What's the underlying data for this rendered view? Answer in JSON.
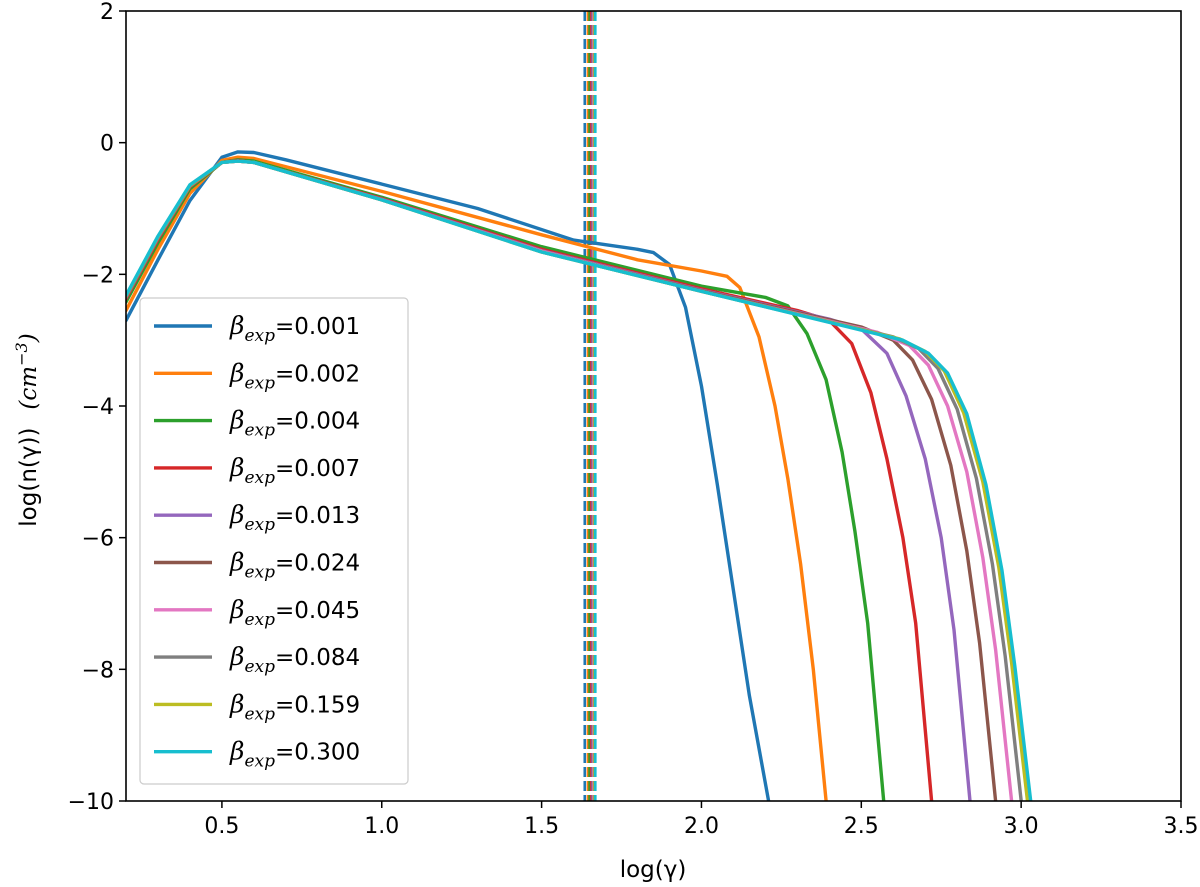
{
  "chart_data": {
    "type": "line",
    "xlabel": "log(γ)",
    "ylabel": "log(n(γ))",
    "ylabel_unit_base": "cm",
    "ylabel_unit_exp": "−3",
    "xlim": [
      0.2,
      3.5
    ],
    "ylim": [
      -10,
      2
    ],
    "xticks": [
      0.5,
      1.0,
      1.5,
      2.0,
      2.5,
      3.0,
      3.5
    ],
    "xtick_labels": [
      "0.5",
      "1.0",
      "1.5",
      "2.0",
      "2.5",
      "3.0",
      "3.5"
    ],
    "yticks": [
      -10,
      -8,
      -6,
      -4,
      -2,
      0,
      2
    ],
    "ytick_labels": [
      "−10",
      "−8",
      "−6",
      "−4",
      "−2",
      "0",
      "2"
    ],
    "legend_position": "lower-left",
    "legend_symbol": "β",
    "legend_subscript": "exp",
    "vlines": [
      {
        "x": 1.635,
        "color": "#1f77b4"
      },
      {
        "x": 1.645,
        "color": "#ff7f0e"
      },
      {
        "x": 1.65,
        "color": "#2ca02c"
      },
      {
        "x": 1.655,
        "color": "#d62728"
      },
      {
        "x": 1.658,
        "color": "#9467bd"
      },
      {
        "x": 1.66,
        "color": "#8c564b"
      },
      {
        "x": 1.662,
        "color": "#e377c2"
      },
      {
        "x": 1.664,
        "color": "#7f7f7f"
      },
      {
        "x": 1.666,
        "color": "#bcbd22"
      },
      {
        "x": 1.668,
        "color": "#17becf"
      }
    ],
    "series": [
      {
        "name": "=0.001",
        "color": "#1f77b4",
        "points": [
          [
            0.2,
            -2.7
          ],
          [
            0.3,
            -1.78
          ],
          [
            0.4,
            -0.88
          ],
          [
            0.5,
            -0.22
          ],
          [
            0.55,
            -0.14
          ],
          [
            0.6,
            -0.15
          ],
          [
            0.7,
            -0.26
          ],
          [
            1.0,
            -0.63
          ],
          [
            1.3,
            -1.0
          ],
          [
            1.6,
            -1.48
          ],
          [
            1.7,
            -1.55
          ],
          [
            1.8,
            -1.62
          ],
          [
            1.85,
            -1.67
          ],
          [
            1.9,
            -1.85
          ],
          [
            1.95,
            -2.5
          ],
          [
            2.0,
            -3.7
          ],
          [
            2.05,
            -5.2
          ],
          [
            2.1,
            -6.8
          ],
          [
            2.15,
            -8.4
          ],
          [
            2.21,
            -10.0
          ]
        ]
      },
      {
        "name": "=0.002",
        "color": "#ff7f0e",
        "points": [
          [
            0.2,
            -2.55
          ],
          [
            0.3,
            -1.62
          ],
          [
            0.4,
            -0.77
          ],
          [
            0.5,
            -0.27
          ],
          [
            0.55,
            -0.22
          ],
          [
            0.6,
            -0.24
          ],
          [
            1.0,
            -0.74
          ],
          [
            1.5,
            -1.4
          ],
          [
            1.8,
            -1.78
          ],
          [
            2.0,
            -1.95
          ],
          [
            2.08,
            -2.03
          ],
          [
            2.12,
            -2.2
          ],
          [
            2.18,
            -2.95
          ],
          [
            2.23,
            -4.0
          ],
          [
            2.27,
            -5.1
          ],
          [
            2.31,
            -6.4
          ],
          [
            2.35,
            -8.0
          ],
          [
            2.39,
            -10.0
          ]
        ]
      },
      {
        "name": "=0.004",
        "color": "#2ca02c",
        "points": [
          [
            0.2,
            -2.42
          ],
          [
            0.3,
            -1.52
          ],
          [
            0.4,
            -0.7
          ],
          [
            0.5,
            -0.3
          ],
          [
            0.55,
            -0.26
          ],
          [
            0.6,
            -0.28
          ],
          [
            1.0,
            -0.83
          ],
          [
            1.5,
            -1.58
          ],
          [
            2.0,
            -2.18
          ],
          [
            2.2,
            -2.35
          ],
          [
            2.27,
            -2.48
          ],
          [
            2.33,
            -2.9
          ],
          [
            2.39,
            -3.6
          ],
          [
            2.44,
            -4.7
          ],
          [
            2.48,
            -5.9
          ],
          [
            2.52,
            -7.3
          ],
          [
            2.57,
            -10.0
          ]
        ]
      },
      {
        "name": "=0.007",
        "color": "#d62728",
        "points": [
          [
            0.2,
            -2.37
          ],
          [
            0.3,
            -1.47
          ],
          [
            0.4,
            -0.67
          ],
          [
            0.5,
            -0.3
          ],
          [
            0.55,
            -0.27
          ],
          [
            0.6,
            -0.3
          ],
          [
            1.0,
            -0.85
          ],
          [
            1.5,
            -1.62
          ],
          [
            2.0,
            -2.22
          ],
          [
            2.3,
            -2.55
          ],
          [
            2.4,
            -2.7
          ],
          [
            2.47,
            -3.05
          ],
          [
            2.53,
            -3.8
          ],
          [
            2.58,
            -4.8
          ],
          [
            2.63,
            -6.0
          ],
          [
            2.67,
            -7.3
          ],
          [
            2.72,
            -10.0
          ]
        ]
      },
      {
        "name": "=0.013",
        "color": "#9467bd",
        "points": [
          [
            0.2,
            -2.35
          ],
          [
            0.3,
            -1.45
          ],
          [
            0.4,
            -0.66
          ],
          [
            0.5,
            -0.3
          ],
          [
            0.55,
            -0.28
          ],
          [
            0.6,
            -0.3
          ],
          [
            1.0,
            -0.86
          ],
          [
            1.5,
            -1.64
          ],
          [
            2.0,
            -2.24
          ],
          [
            2.4,
            -2.68
          ],
          [
            2.5,
            -2.83
          ],
          [
            2.58,
            -3.2
          ],
          [
            2.64,
            -3.85
          ],
          [
            2.7,
            -4.8
          ],
          [
            2.75,
            -6.0
          ],
          [
            2.79,
            -7.4
          ],
          [
            2.84,
            -10.0
          ]
        ]
      },
      {
        "name": "=0.024",
        "color": "#8c564b",
        "points": [
          [
            0.2,
            -2.34
          ],
          [
            0.3,
            -1.44
          ],
          [
            0.4,
            -0.65
          ],
          [
            0.5,
            -0.3
          ],
          [
            0.55,
            -0.28
          ],
          [
            0.6,
            -0.3
          ],
          [
            1.0,
            -0.87
          ],
          [
            1.5,
            -1.65
          ],
          [
            2.0,
            -2.25
          ],
          [
            2.5,
            -2.8
          ],
          [
            2.6,
            -3.0
          ],
          [
            2.66,
            -3.3
          ],
          [
            2.72,
            -3.9
          ],
          [
            2.78,
            -4.9
          ],
          [
            2.83,
            -6.2
          ],
          [
            2.87,
            -7.6
          ],
          [
            2.92,
            -10.0
          ]
        ]
      },
      {
        "name": "=0.045",
        "color": "#e377c2",
        "points": [
          [
            0.2,
            -2.33
          ],
          [
            0.3,
            -1.43
          ],
          [
            0.4,
            -0.65
          ],
          [
            0.5,
            -0.3
          ],
          [
            0.55,
            -0.28
          ],
          [
            0.6,
            -0.3
          ],
          [
            1.0,
            -0.87
          ],
          [
            1.5,
            -1.65
          ],
          [
            2.0,
            -2.26
          ],
          [
            2.55,
            -2.88
          ],
          [
            2.65,
            -3.08
          ],
          [
            2.71,
            -3.38
          ],
          [
            2.77,
            -4.0
          ],
          [
            2.83,
            -5.0
          ],
          [
            2.88,
            -6.3
          ],
          [
            2.92,
            -7.7
          ],
          [
            2.97,
            -10.0
          ]
        ]
      },
      {
        "name": "=0.084",
        "color": "#7f7f7f",
        "points": [
          [
            0.2,
            -2.33
          ],
          [
            0.3,
            -1.43
          ],
          [
            0.4,
            -0.65
          ],
          [
            0.5,
            -0.3
          ],
          [
            0.55,
            -0.28
          ],
          [
            0.6,
            -0.3
          ],
          [
            1.0,
            -0.87
          ],
          [
            1.5,
            -1.66
          ],
          [
            2.0,
            -2.26
          ],
          [
            2.6,
            -2.95
          ],
          [
            2.68,
            -3.13
          ],
          [
            2.74,
            -3.43
          ],
          [
            2.8,
            -4.05
          ],
          [
            2.86,
            -5.1
          ],
          [
            2.91,
            -6.4
          ],
          [
            2.95,
            -7.8
          ],
          [
            3.0,
            -10.0
          ]
        ]
      },
      {
        "name": "=0.159",
        "color": "#bcbd22",
        "points": [
          [
            0.2,
            -2.33
          ],
          [
            0.3,
            -1.43
          ],
          [
            0.4,
            -0.65
          ],
          [
            0.5,
            -0.3
          ],
          [
            0.55,
            -0.28
          ],
          [
            0.6,
            -0.3
          ],
          [
            1.0,
            -0.87
          ],
          [
            1.5,
            -1.66
          ],
          [
            2.0,
            -2.26
          ],
          [
            2.62,
            -2.98
          ],
          [
            2.7,
            -3.17
          ],
          [
            2.76,
            -3.47
          ],
          [
            2.82,
            -4.1
          ],
          [
            2.88,
            -5.15
          ],
          [
            2.93,
            -6.45
          ],
          [
            2.97,
            -7.9
          ],
          [
            3.02,
            -10.0
          ]
        ]
      },
      {
        "name": "=0.300",
        "color": "#17becf",
        "points": [
          [
            0.2,
            -2.32
          ],
          [
            0.3,
            -1.42
          ],
          [
            0.4,
            -0.64
          ],
          [
            0.5,
            -0.3
          ],
          [
            0.55,
            -0.28
          ],
          [
            0.6,
            -0.3
          ],
          [
            1.0,
            -0.87
          ],
          [
            1.5,
            -1.66
          ],
          [
            2.0,
            -2.26
          ],
          [
            2.63,
            -3.0
          ],
          [
            2.71,
            -3.2
          ],
          [
            2.77,
            -3.5
          ],
          [
            2.83,
            -4.12
          ],
          [
            2.89,
            -5.2
          ],
          [
            2.94,
            -6.5
          ],
          [
            2.98,
            -7.95
          ],
          [
            3.03,
            -10.0
          ]
        ]
      }
    ]
  }
}
